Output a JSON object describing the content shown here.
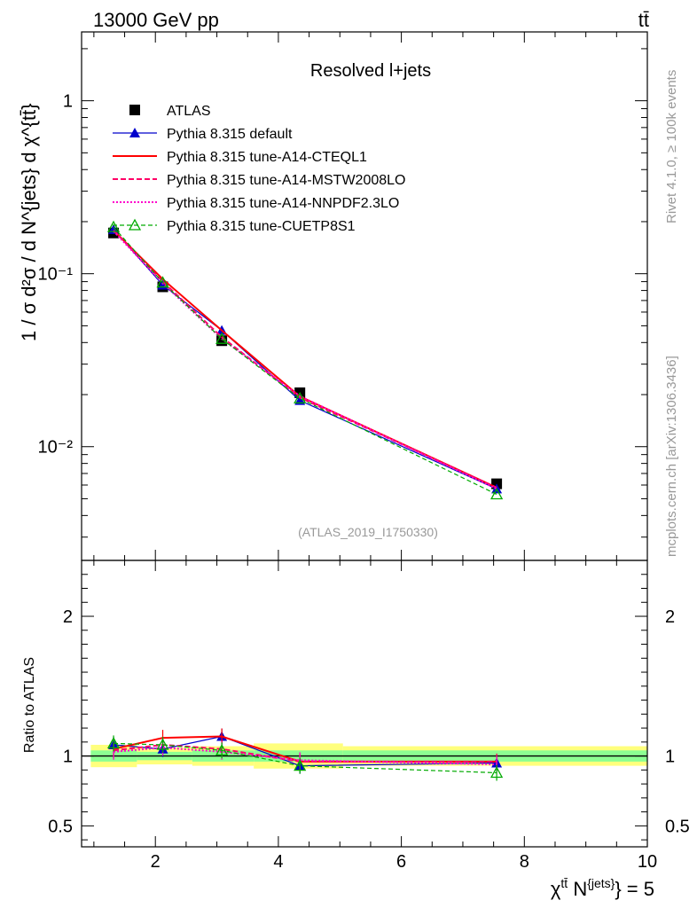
{
  "header": {
    "left_label": "13000 GeV pp",
    "right_label": "tt̄"
  },
  "side_labels": {
    "rivet": "Rivet 4.1.0, ≥ 100k events",
    "mcplots": "mcplots.cern.ch [arXiv:1306.3436]"
  },
  "chart_data": [
    {
      "type": "line",
      "panel": "main",
      "title": "Resolved l+jets",
      "analysis_label": "(ATLAS_2019_I1750330)",
      "ylabel": "1 / σ d²σ / d N^{jets} d χ^{tt̄}",
      "yscale": "log",
      "ylim": [
        0.0022,
        2.5
      ],
      "xlim": [
        0.8,
        10
      ],
      "y_tick_labels": [
        "1",
        "10⁻¹",
        "10⁻²"
      ],
      "x": [
        1.32,
        2.12,
        3.08,
        4.35,
        7.55
      ],
      "series": [
        {
          "name": "ATLAS",
          "color": "#000000",
          "values": [
            0.172,
            0.084,
            0.041,
            0.0205,
            0.0061
          ]
        },
        {
          "name": "Pythia 8.315 default",
          "color": "#0000cc",
          "values": [
            0.18,
            0.086,
            0.047,
            0.0185,
            0.0057
          ]
        },
        {
          "name": "Pythia 8.315 tune-A14-CTEQL1",
          "color": "#ff0000",
          "values": [
            0.178,
            0.093,
            0.047,
            0.0195,
            0.0058
          ]
        },
        {
          "name": "Pythia 8.315 tune-A14-MSTW2008LO",
          "color": "#ff0066",
          "values": [
            0.178,
            0.09,
            0.043,
            0.0192,
            0.0058
          ]
        },
        {
          "name": "Pythia 8.315 tune-A14-NNPDF2.3LO",
          "color": "#ff00cc",
          "values": [
            0.176,
            0.088,
            0.042,
            0.0196,
            0.0057
          ]
        },
        {
          "name": "Pythia 8.315 tune-CUETP8S1",
          "color": "#00aa00",
          "values": [
            0.186,
            0.089,
            0.042,
            0.019,
            0.0053
          ]
        }
      ]
    },
    {
      "type": "line",
      "panel": "ratio",
      "ylabel": "Ratio to ATLAS",
      "xlabel": "χ^{tt̄} N^{jets} = 5",
      "xlabel_parts": {
        "chi": "χ",
        "tt": "tt̄",
        "n": " N",
        "jets": "{jets}",
        "tail": "} = 5"
      },
      "ylim": [
        0.35,
        2.4
      ],
      "xlim": [
        0.8,
        10
      ],
      "y_ticks": [
        0.5,
        1,
        2
      ],
      "y_tick_labels": [
        "0.5",
        "1",
        "2"
      ],
      "x_ticks": [
        2,
        4,
        6,
        8,
        10
      ],
      "x_tick_labels": [
        "2",
        "4",
        "6",
        "8",
        "10"
      ],
      "bins": [
        [
          0.95,
          1.7
        ],
        [
          1.7,
          2.6
        ],
        [
          2.6,
          3.6
        ],
        [
          3.6,
          5.05
        ],
        [
          5.05,
          10
        ]
      ],
      "uncertainty_bands": {
        "inner": [
          0.04,
          0.03,
          0.04,
          0.04,
          0.04
        ],
        "outer": [
          0.08,
          0.06,
          0.07,
          0.09,
          0.07
        ]
      },
      "x": [
        1.32,
        2.12,
        3.08,
        4.35,
        7.55
      ],
      "series": [
        {
          "name": "Pythia 8.315 default",
          "color": "#0000cc",
          "values": [
            1.08,
            1.05,
            1.14,
            0.93,
            0.95
          ]
        },
        {
          "name": "Pythia 8.315 tune-A14-CTEQL1",
          "color": "#ff0000",
          "values": [
            1.05,
            1.13,
            1.14,
            0.96,
            0.96
          ]
        },
        {
          "name": "Pythia 8.315 tune-A14-MSTW2008LO",
          "color": "#ff0066",
          "values": [
            1.04,
            1.08,
            1.05,
            0.96,
            0.96
          ]
        },
        {
          "name": "Pythia 8.315 tune-A14-NNPDF2.3LO",
          "color": "#ff00cc",
          "values": [
            1.03,
            1.06,
            1.03,
            0.97,
            0.94
          ]
        },
        {
          "name": "Pythia 8.315 tune-CUETP8S1",
          "color": "#00aa00",
          "values": [
            1.09,
            1.08,
            1.04,
            0.93,
            0.88
          ]
        }
      ]
    }
  ]
}
